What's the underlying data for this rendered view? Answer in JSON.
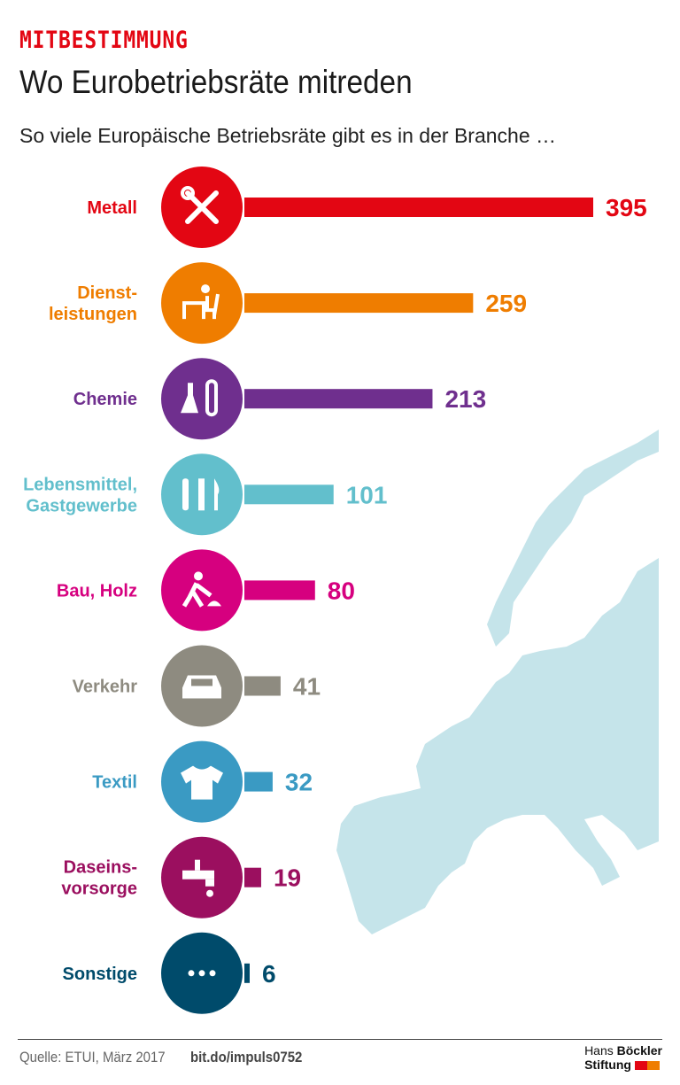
{
  "header": {
    "kicker": "MITBESTIMMUNG",
    "title": "Wo Eurobetriebsräte mitreden",
    "subtitle": "So viele Europäische Betriebsräte gibt es in der Branche …"
  },
  "chart_data": {
    "type": "bar",
    "orientation": "horizontal",
    "categories": [
      "Metall",
      "Dienst-\nleistungen",
      "Chemie",
      "Lebensmittel,\nGastgewerbe",
      "Bau, Holz",
      "Verkehr",
      "Textil",
      "Daseins-\nvorsorge",
      "Sonstige"
    ],
    "values": [
      395,
      259,
      213,
      101,
      80,
      41,
      32,
      19,
      6
    ],
    "colors": [
      "#e30613",
      "#ef7d00",
      "#6f2f8e",
      "#62bfcc",
      "#d6007f",
      "#8e8b80",
      "#3a9ac3",
      "#9b0f5f",
      "#004b6b"
    ],
    "icons": [
      "wrench-screwdriver-icon",
      "office-worker-icon",
      "lab-flask-icon",
      "cutlery-icon",
      "construction-worker-icon",
      "car-icon",
      "shirt-icon",
      "water-tap-icon",
      "more-dots-icon"
    ],
    "title": "Wo Eurobetriebsräte mitreden",
    "background": "europe-map",
    "map_color": "#c5e4ea"
  },
  "footer": {
    "source": "Quelle: ETUI, März 2017",
    "link": "bit.do/impuls0752",
    "logo_line1_a": "Hans ",
    "logo_line1_b": "Böckler",
    "logo_line2": "Stiftung",
    "logo_colors": [
      "#e30613",
      "#ef7d00"
    ]
  }
}
